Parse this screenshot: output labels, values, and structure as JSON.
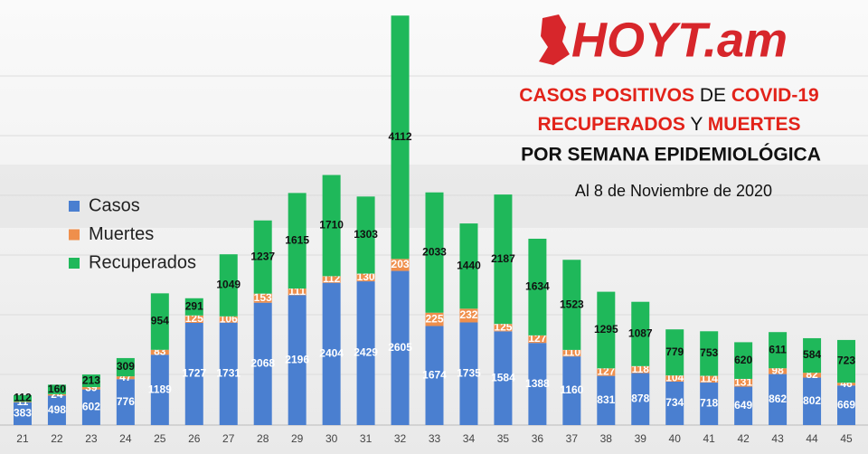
{
  "logo": "HOYT.am",
  "chart_data": {
    "type": "stacked_bar",
    "title_lines": [
      [
        "CASOS POSITIVOS",
        " DE ",
        "COVID-19"
      ],
      [
        "RECUPERADOS",
        " Y ",
        "MUERTES"
      ]
    ],
    "subtitle": "POR SEMANA EPIDEMIOLÓGICA",
    "date_note": "Al 8 de Noviembre de 2020",
    "categories": [
      "21",
      "22",
      "23",
      "24",
      "25",
      "26",
      "27",
      "28",
      "29",
      "30",
      "31",
      "32",
      "33",
      "34",
      "35",
      "36",
      "37",
      "38",
      "39",
      "40",
      "41",
      "42",
      "43",
      "44",
      "45"
    ],
    "series": [
      {
        "name": "Casos",
        "color": "#4a7fd0",
        "values": [
          383,
          498,
          602,
          776,
          1189,
          1727,
          1731,
          2068,
          2196,
          2404,
          2429,
          2605,
          1674,
          1735,
          1584,
          1388,
          1160,
          831,
          878,
          734,
          718,
          649,
          862,
          802,
          669
        ]
      },
      {
        "name": "Muertes",
        "color": "#ef8f4c",
        "values": [
          11,
          24,
          39,
          47,
          83,
          125,
          106,
          153,
          111,
          112,
          130,
          203,
          225,
          232,
          125,
          127,
          110,
          127,
          118,
          104,
          114,
          131,
          98,
          82,
          46
        ]
      },
      {
        "name": "Recuperados",
        "color": "#1fb85a",
        "values": [
          112,
          160,
          213,
          309,
          954,
          291,
          1049,
          1237,
          1615,
          1710,
          1303,
          4112,
          2033,
          1440,
          2187,
          1634,
          1523,
          1295,
          1087,
          779,
          753,
          620,
          611,
          584,
          723
        ]
      }
    ],
    "ylim": [
      0,
      7000
    ]
  }
}
